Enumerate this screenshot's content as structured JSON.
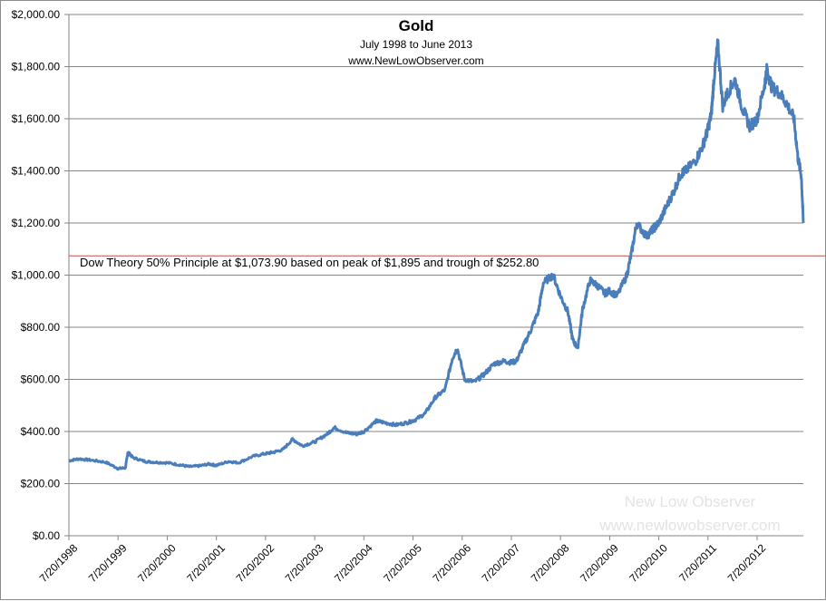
{
  "chart_data": {
    "type": "line",
    "title": "Gold",
    "subtitle": "July 1998  to June 2013",
    "source": "www.NewLowObserver.com",
    "ylim": [
      0,
      2000
    ],
    "y_ticks": [
      "$0.00",
      "$200.00",
      "$400.00",
      "$600.00",
      "$800.00",
      "$1,000.00",
      "$1,200.00",
      "$1,400.00",
      "$1,600.00",
      "$1,800.00",
      "$2,000.00"
    ],
    "y_tick_values": [
      0,
      200,
      400,
      600,
      800,
      1000,
      1200,
      1400,
      1600,
      1800,
      2000
    ],
    "xlim": [
      1998.55,
      2013.49
    ],
    "x_ticks": [
      "7/20/1998",
      "7/20/1999",
      "7/20/2000",
      "7/20/2001",
      "7/20/2002",
      "7/20/2003",
      "7/20/2004",
      "7/20/2005",
      "7/20/2006",
      "7/20/2007",
      "7/20/2008",
      "7/20/2009",
      "7/20/2010",
      "7/20/2011",
      "7/20/2012"
    ],
    "x_tick_values": [
      1998.55,
      1999.55,
      2000.55,
      2001.55,
      2002.55,
      2003.55,
      2004.55,
      2005.55,
      2006.55,
      2007.55,
      2008.55,
      2009.55,
      2010.55,
      2011.55,
      2012.55
    ],
    "series": [
      {
        "name": "Gold",
        "color": "#4a7ebb",
        "x": [
          1998.55,
          1998.75,
          1999.0,
          1999.3,
          1999.55,
          1999.7,
          1999.75,
          1999.85,
          2000.1,
          2000.3,
          2000.55,
          2000.8,
          2001.0,
          2001.2,
          2001.4,
          2001.55,
          2001.8,
          2002.0,
          2002.3,
          2002.55,
          2002.7,
          2002.9,
          2003.1,
          2003.3,
          2003.55,
          2003.8,
          2003.95,
          2004.2,
          2004.4,
          2004.55,
          2004.8,
          2004.95,
          2005.2,
          2005.45,
          2005.6,
          2005.8,
          2006.0,
          2006.2,
          2006.35,
          2006.45,
          2006.6,
          2006.8,
          2007.0,
          2007.2,
          2007.4,
          2007.55,
          2007.65,
          2007.8,
          2007.95,
          2008.1,
          2008.2,
          2008.4,
          2008.55,
          2008.7,
          2008.8,
          2008.9,
          2009.0,
          2009.15,
          2009.3,
          2009.45,
          2009.55,
          2009.7,
          2009.9,
          2010.0,
          2010.1,
          2010.3,
          2010.45,
          2010.55,
          2010.7,
          2010.85,
          2011.0,
          2011.1,
          2011.3,
          2011.45,
          2011.55,
          2011.62,
          2011.67,
          2011.75,
          2011.85,
          2011.95,
          2012.1,
          2012.25,
          2012.4,
          2012.55,
          2012.7,
          2012.75,
          2012.85,
          2013.0,
          2013.15,
          2013.3,
          2013.38,
          2013.45,
          2013.49
        ],
        "y": [
          288,
          295,
          290,
          282,
          258,
          260,
          322,
          300,
          285,
          282,
          280,
          272,
          265,
          268,
          275,
          270,
          285,
          280,
          305,
          315,
          320,
          330,
          370,
          345,
          360,
          390,
          415,
          395,
          390,
          400,
          440,
          435,
          425,
          435,
          445,
          470,
          530,
          560,
          680,
          720,
          600,
          590,
          620,
          660,
          670,
          665,
          670,
          730,
          790,
          860,
          970,
          1000,
          920,
          860,
          750,
          720,
          870,
          980,
          960,
          930,
          940,
          920,
          1000,
          1090,
          1200,
          1150,
          1180,
          1200,
          1260,
          1320,
          1390,
          1400,
          1440,
          1500,
          1560,
          1620,
          1750,
          1890,
          1650,
          1700,
          1750,
          1640,
          1570,
          1600,
          1730,
          1790,
          1720,
          1700,
          1660,
          1600,
          1450,
          1380,
          1200
        ]
      }
    ],
    "reference_line": {
      "value": 1073.9,
      "label": "Dow Theory 50% Principle at $1,073.90  based on peak of $1,895  and trough of $252.80",
      "color": "#c0504d"
    }
  },
  "watermark": {
    "line1": "New Low Observer",
    "line2": "www.newlowobserver.com"
  }
}
